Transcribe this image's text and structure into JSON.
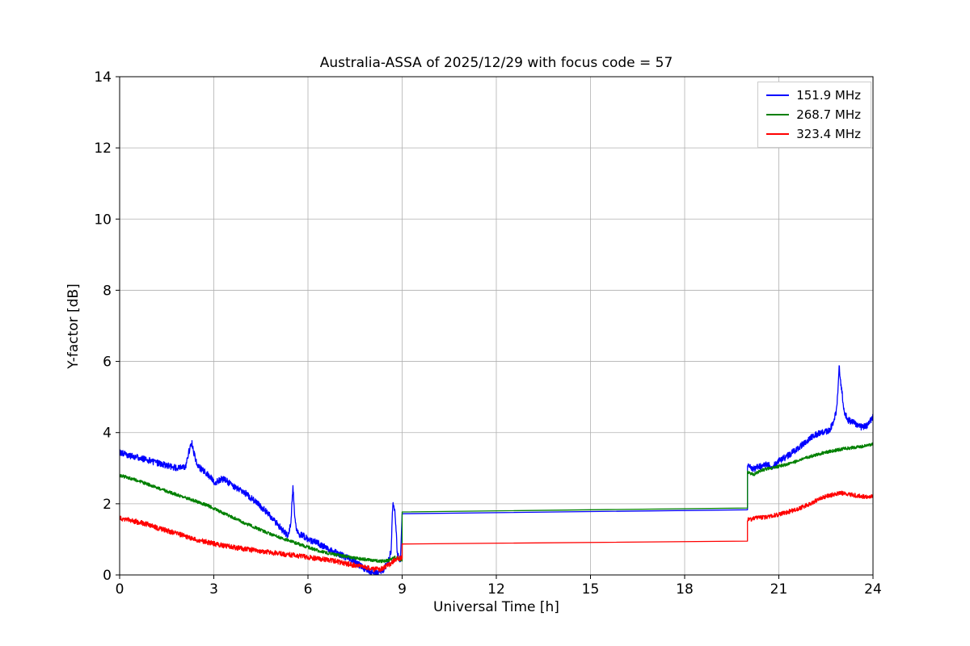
{
  "chart_data": {
    "type": "line",
    "title": "Australia-ASSA of 2025/12/29 with focus code = 57",
    "xlabel": "Universal Time [h]",
    "ylabel": "Y-factor [dB]",
    "xlim": [
      0,
      24
    ],
    "ylim": [
      0,
      14
    ],
    "xticks": [
      0,
      3,
      6,
      9,
      12,
      15,
      18,
      21,
      24
    ],
    "yticks": [
      0,
      2,
      4,
      6,
      8,
      10,
      12,
      14
    ],
    "grid": true,
    "grid_color": "#b0b0b0",
    "legend_position": "top-right",
    "series": [
      {
        "name": "151.9 MHz",
        "color": "#0000ff",
        "segments": [
          {
            "noise": 0.09,
            "points": [
              [
                0,
                3.45
              ],
              [
                0.3,
                3.35
              ],
              [
                0.7,
                3.28
              ],
              [
                1.0,
                3.2
              ],
              [
                1.3,
                3.12
              ],
              [
                1.6,
                3.05
              ],
              [
                1.9,
                3.0
              ],
              [
                2.1,
                3.05
              ],
              [
                2.2,
                3.45
              ],
              [
                2.3,
                3.7
              ],
              [
                2.4,
                3.3
              ],
              [
                2.5,
                3.05
              ],
              [
                2.7,
                2.9
              ],
              [
                2.9,
                2.75
              ],
              [
                3.0,
                2.6
              ],
              [
                3.1,
                2.62
              ],
              [
                3.25,
                2.7
              ],
              [
                3.4,
                2.65
              ],
              [
                3.6,
                2.5
              ],
              [
                3.8,
                2.4
              ],
              [
                4.0,
                2.3
              ],
              [
                4.2,
                2.15
              ],
              [
                4.4,
                2.0
              ],
              [
                4.7,
                1.75
              ],
              [
                5.0,
                1.45
              ],
              [
                5.2,
                1.25
              ],
              [
                5.35,
                1.1
              ],
              [
                5.45,
                1.4
              ],
              [
                5.52,
                2.45
              ],
              [
                5.6,
                1.4
              ],
              [
                5.7,
                1.15
              ],
              [
                5.85,
                1.1
              ],
              [
                6.0,
                1.0
              ],
              [
                6.3,
                0.9
              ],
              [
                6.6,
                0.75
              ],
              [
                6.9,
                0.62
              ],
              [
                7.2,
                0.5
              ],
              [
                7.5,
                0.35
              ],
              [
                7.8,
                0.18
              ],
              [
                8.0,
                0.08
              ],
              [
                8.2,
                0.07
              ],
              [
                8.4,
                0.15
              ],
              [
                8.55,
                0.35
              ],
              [
                8.65,
                0.7
              ],
              [
                8.7,
                2.0
              ],
              [
                8.78,
                1.7
              ],
              [
                8.85,
                0.55
              ],
              [
                8.95,
                0.42
              ]
            ]
          },
          {
            "noise": 0,
            "points": [
              [
                9,
                1.72
              ],
              [
                20,
                1.83
              ]
            ]
          },
          {
            "noise": 0.09,
            "points": [
              [
                20,
                3.05
              ],
              [
                20.2,
                2.98
              ],
              [
                20.4,
                3.05
              ],
              [
                20.6,
                3.1
              ],
              [
                20.8,
                3.05
              ],
              [
                21.0,
                3.2
              ],
              [
                21.2,
                3.3
              ],
              [
                21.4,
                3.42
              ],
              [
                21.6,
                3.55
              ],
              [
                21.8,
                3.7
              ],
              [
                22.0,
                3.85
              ],
              [
                22.2,
                3.95
              ],
              [
                22.4,
                4.0
              ],
              [
                22.6,
                4.05
              ],
              [
                22.75,
                4.3
              ],
              [
                22.85,
                4.7
              ],
              [
                22.92,
                5.85
              ],
              [
                23.0,
                5.2
              ],
              [
                23.08,
                4.6
              ],
              [
                23.2,
                4.35
              ],
              [
                23.35,
                4.3
              ],
              [
                23.5,
                4.2
              ],
              [
                23.65,
                4.15
              ],
              [
                23.8,
                4.2
              ],
              [
                23.9,
                4.3
              ],
              [
                24,
                4.45
              ]
            ]
          }
        ]
      },
      {
        "name": "268.7 MHz",
        "color": "#008000",
        "segments": [
          {
            "noise": 0.045,
            "points": [
              [
                0,
                2.8
              ],
              [
                0.4,
                2.7
              ],
              [
                0.8,
                2.58
              ],
              [
                1.2,
                2.45
              ],
              [
                1.6,
                2.32
              ],
              [
                2.0,
                2.2
              ],
              [
                2.4,
                2.08
              ],
              [
                2.8,
                1.95
              ],
              [
                3.2,
                1.78
              ],
              [
                3.6,
                1.62
              ],
              [
                4.0,
                1.45
              ],
              [
                4.4,
                1.3
              ],
              [
                4.8,
                1.15
              ],
              [
                5.2,
                1.02
              ],
              [
                5.6,
                0.9
              ],
              [
                6.0,
                0.78
              ],
              [
                6.4,
                0.66
              ],
              [
                6.8,
                0.58
              ],
              [
                7.2,
                0.52
              ],
              [
                7.6,
                0.46
              ],
              [
                8.0,
                0.42
              ],
              [
                8.3,
                0.38
              ],
              [
                8.6,
                0.42
              ],
              [
                8.75,
                0.5
              ],
              [
                8.9,
                0.44
              ],
              [
                9,
                0.42
              ]
            ]
          },
          {
            "noise": 0,
            "points": [
              [
                9,
                1.77
              ],
              [
                20,
                1.88
              ]
            ]
          },
          {
            "noise": 0.045,
            "points": [
              [
                20,
                2.9
              ],
              [
                20.2,
                2.82
              ],
              [
                20.4,
                2.92
              ],
              [
                20.6,
                2.98
              ],
              [
                20.8,
                3.0
              ],
              [
                21.0,
                3.05
              ],
              [
                21.3,
                3.12
              ],
              [
                21.6,
                3.2
              ],
              [
                21.9,
                3.3
              ],
              [
                22.2,
                3.38
              ],
              [
                22.5,
                3.45
              ],
              [
                22.8,
                3.5
              ],
              [
                23.1,
                3.55
              ],
              [
                23.4,
                3.58
              ],
              [
                23.7,
                3.62
              ],
              [
                24,
                3.68
              ]
            ]
          }
        ]
      },
      {
        "name": "323.4 MHz",
        "color": "#ff0000",
        "segments": [
          {
            "noise": 0.07,
            "points": [
              [
                0,
                1.6
              ],
              [
                0.4,
                1.52
              ],
              [
                0.8,
                1.45
              ],
              [
                1.2,
                1.32
              ],
              [
                1.6,
                1.22
              ],
              [
                2.0,
                1.12
              ],
              [
                2.4,
                1.0
              ],
              [
                2.8,
                0.92
              ],
              [
                3.2,
                0.84
              ],
              [
                3.6,
                0.78
              ],
              [
                4.0,
                0.73
              ],
              [
                4.4,
                0.68
              ],
              [
                4.8,
                0.63
              ],
              [
                5.2,
                0.59
              ],
              [
                5.6,
                0.55
              ],
              [
                6.0,
                0.5
              ],
              [
                6.4,
                0.45
              ],
              [
                6.8,
                0.4
              ],
              [
                7.2,
                0.32
              ],
              [
                7.6,
                0.25
              ],
              [
                8.0,
                0.17
              ],
              [
                8.3,
                0.15
              ],
              [
                8.6,
                0.3
              ],
              [
                8.8,
                0.45
              ],
              [
                9,
                0.48
              ]
            ]
          },
          {
            "noise": 0,
            "points": [
              [
                9,
                0.87
              ],
              [
                20,
                0.95
              ]
            ]
          },
          {
            "noise": 0.06,
            "points": [
              [
                20,
                1.55
              ],
              [
                20.3,
                1.6
              ],
              [
                20.6,
                1.62
              ],
              [
                20.9,
                1.68
              ],
              [
                21.2,
                1.75
              ],
              [
                21.5,
                1.82
              ],
              [
                21.8,
                1.92
              ],
              [
                22.1,
                2.05
              ],
              [
                22.4,
                2.18
              ],
              [
                22.7,
                2.25
              ],
              [
                23.0,
                2.3
              ],
              [
                23.2,
                2.28
              ],
              [
                23.5,
                2.22
              ],
              [
                23.8,
                2.2
              ],
              [
                24,
                2.22
              ]
            ]
          }
        ]
      }
    ]
  }
}
